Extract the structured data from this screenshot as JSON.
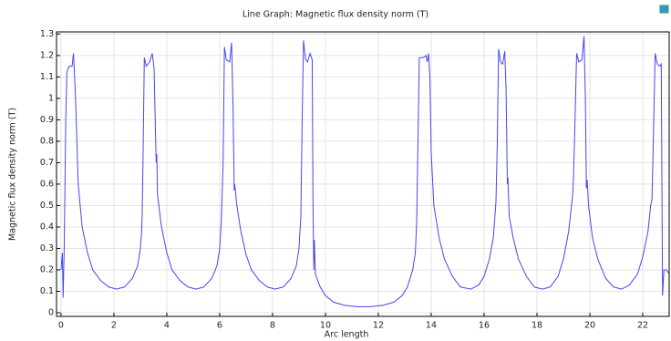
{
  "chart_data": {
    "type": "line",
    "title": "Line Graph: Magnetic flux density norm (T)",
    "x_label": "Arc length",
    "y_label": "Magnetic flux density norm (T)",
    "grid": true,
    "xlim": [
      -0.17,
      23
    ],
    "ylim": [
      -0.017,
      1.31
    ],
    "xticks": [
      0,
      2,
      4,
      6,
      8,
      10,
      12,
      14,
      16,
      18,
      20,
      22
    ],
    "yticks": [
      0,
      0.1,
      0.2,
      0.3,
      0.4,
      0.5,
      0.6,
      0.7,
      0.8,
      0.9,
      1,
      1.1,
      1.2,
      1.3
    ],
    "x": [
      0,
      0.05,
      0.08,
      0.12,
      0.18,
      0.22,
      0.3,
      0.42,
      0.47,
      0.5,
      0.55,
      0.65,
      0.8,
      1.0,
      1.2,
      1.5,
      1.8,
      2.1,
      2.4,
      2.7,
      2.9,
      3.0,
      3.05,
      3.07,
      3.1,
      3.15,
      3.22,
      3.35,
      3.45,
      3.52,
      3.58,
      3.6,
      3.62,
      3.65,
      3.8,
      4.0,
      4.2,
      4.5,
      4.8,
      5.1,
      5.4,
      5.7,
      5.9,
      6.0,
      6.07,
      6.1,
      6.13,
      6.18,
      6.25,
      6.38,
      6.45,
      6.5,
      6.55,
      6.57,
      6.65,
      6.8,
      7.0,
      7.2,
      7.5,
      7.8,
      8.1,
      8.4,
      8.7,
      8.9,
      9.0,
      9.05,
      9.07,
      9.12,
      9.17,
      9.25,
      9.32,
      9.42,
      9.5,
      9.53,
      9.56,
      9.58,
      9.62,
      9.8,
      10.0,
      10.3,
      10.7,
      11.2,
      11.7,
      12.2,
      12.6,
      12.9,
      13.1,
      13.3,
      13.4,
      13.45,
      13.5,
      13.55,
      13.7,
      13.8,
      13.85,
      13.9,
      13.95,
      14.0,
      14.1,
      14.3,
      14.5,
      14.8,
      15.1,
      15.5,
      15.8,
      16.0,
      16.2,
      16.35,
      16.45,
      16.5,
      16.55,
      16.62,
      16.7,
      16.78,
      16.83,
      16.88,
      16.9,
      16.95,
      17.1,
      17.3,
      17.6,
      17.9,
      18.2,
      18.5,
      18.8,
      19.0,
      19.2,
      19.35,
      19.38,
      19.42,
      19.5,
      19.58,
      19.7,
      19.78,
      19.83,
      19.87,
      19.9,
      19.95,
      20.1,
      20.3,
      20.6,
      20.9,
      21.2,
      21.5,
      21.8,
      22.0,
      22.2,
      22.3,
      22.35,
      22.4,
      22.47,
      22.55,
      22.65,
      22.7,
      22.75,
      22.8,
      22.9,
      23.0
    ],
    "series": [
      {
        "color": "#4545f0",
        "values": [
          0.2,
          0.28,
          0.07,
          0.3,
          0.9,
          1.12,
          1.15,
          1.15,
          1.21,
          1.14,
          1.0,
          0.6,
          0.4,
          0.28,
          0.2,
          0.15,
          0.12,
          0.11,
          0.12,
          0.16,
          0.22,
          0.3,
          0.38,
          0.46,
          0.7,
          1.19,
          1.15,
          1.17,
          1.21,
          1.14,
          0.8,
          0.7,
          0.74,
          0.55,
          0.4,
          0.28,
          0.2,
          0.15,
          0.12,
          0.11,
          0.12,
          0.16,
          0.22,
          0.3,
          0.45,
          0.58,
          0.7,
          1.24,
          1.18,
          1.17,
          1.26,
          1.0,
          0.57,
          0.6,
          0.5,
          0.38,
          0.27,
          0.2,
          0.15,
          0.12,
          0.11,
          0.12,
          0.16,
          0.22,
          0.3,
          0.41,
          0.45,
          0.9,
          1.27,
          1.18,
          1.17,
          1.21,
          1.18,
          0.5,
          0.2,
          0.34,
          0.18,
          0.12,
          0.08,
          0.05,
          0.035,
          0.028,
          0.028,
          0.035,
          0.05,
          0.08,
          0.12,
          0.2,
          0.28,
          0.42,
          0.8,
          1.19,
          1.19,
          1.2,
          1.17,
          1.21,
          1.1,
          0.75,
          0.5,
          0.35,
          0.25,
          0.17,
          0.12,
          0.11,
          0.13,
          0.17,
          0.25,
          0.35,
          0.52,
          0.8,
          1.23,
          1.17,
          1.16,
          1.22,
          1.05,
          0.6,
          0.63,
          0.45,
          0.35,
          0.25,
          0.17,
          0.12,
          0.11,
          0.12,
          0.17,
          0.25,
          0.38,
          0.55,
          0.63,
          0.8,
          1.21,
          1.17,
          1.18,
          1.29,
          1.0,
          0.58,
          0.62,
          0.5,
          0.35,
          0.25,
          0.16,
          0.12,
          0.11,
          0.13,
          0.18,
          0.26,
          0.38,
          0.5,
          0.53,
          0.8,
          1.21,
          1.16,
          1.15,
          1.16,
          0.08,
          0.2,
          0.2,
          0.18
        ]
      }
    ]
  }
}
